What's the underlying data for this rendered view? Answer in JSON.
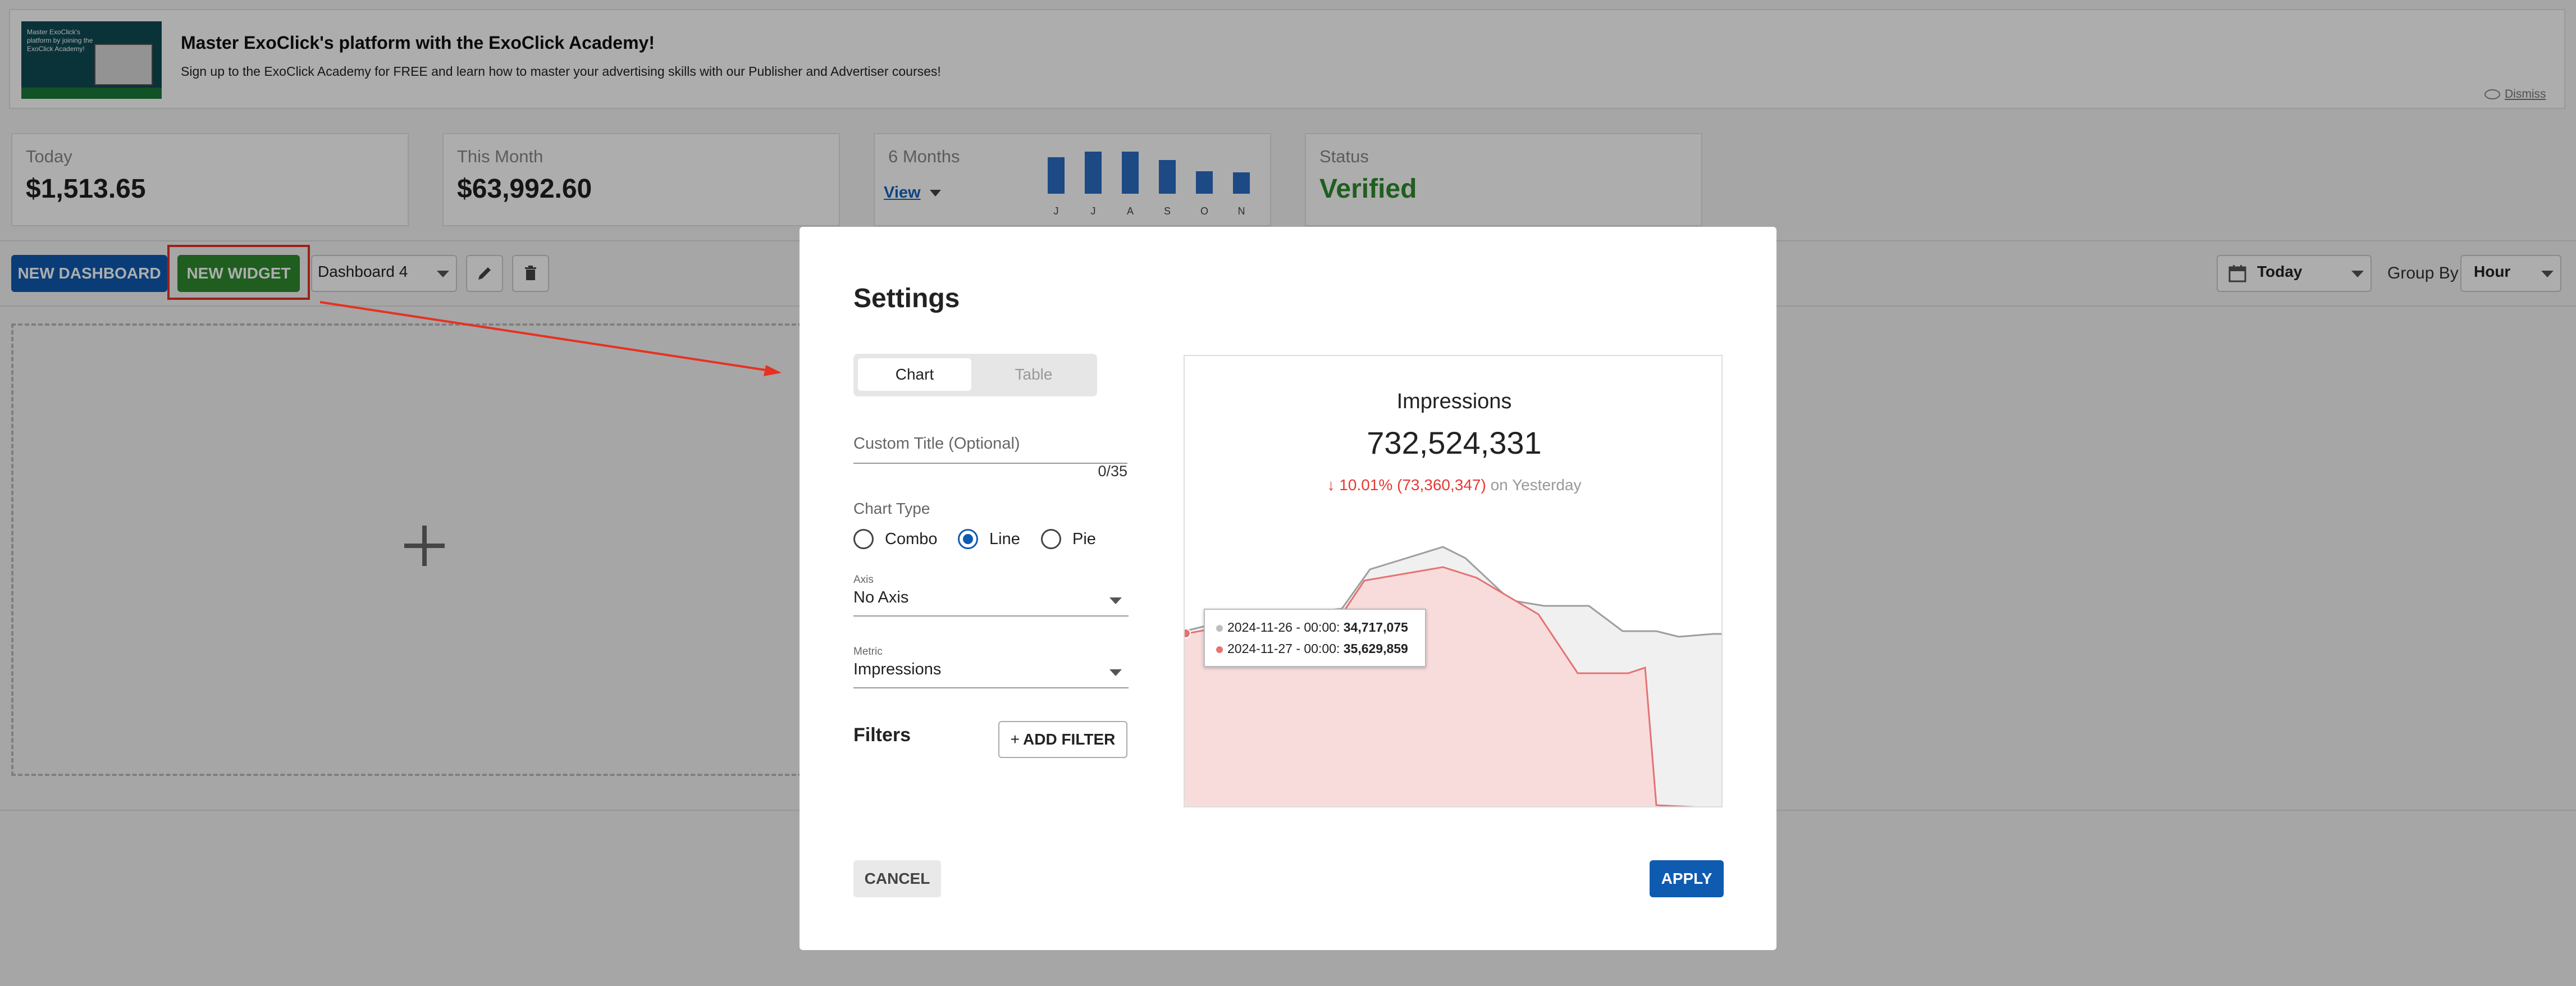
{
  "banner": {
    "image_text": "Master ExoClick's platform by joining the ExoClick Academy!",
    "title": "Master ExoClick's platform with the ExoClick Academy!",
    "subtitle": "Sign up to the ExoClick Academy for FREE and learn how to master your advertising skills with our Publisher and Advertiser courses!",
    "dismiss_label": "Dismiss"
  },
  "stats": {
    "today": {
      "label": "Today",
      "value": "$1,513.65"
    },
    "month": {
      "label": "This Month",
      "value": "$63,992.60"
    },
    "six_months": {
      "label": "6 Months",
      "view_label": "View",
      "bars": [
        {
          "month": "J",
          "level": 0.65
        },
        {
          "month": "J",
          "level": 0.75
        },
        {
          "month": "A",
          "level": 0.75
        },
        {
          "month": "S",
          "level": 0.6
        },
        {
          "month": "O",
          "level": 0.4
        },
        {
          "month": "N",
          "level": 0.38
        }
      ]
    },
    "status": {
      "label": "Status",
      "value": "Verified",
      "color": "#2e8b2e"
    }
  },
  "toolbar": {
    "new_dashboard_label": "NEW DASHBOARD",
    "new_widget_label": "NEW WIDGET",
    "dashboard_select_value": "Dashboard 4",
    "date_range_value": "Today",
    "group_by_label": "Group By",
    "group_by_value": "Hour"
  },
  "modal": {
    "title": "Settings",
    "tabs": {
      "chart": "Chart",
      "table": "Table",
      "selected": "chart"
    },
    "custom_title_placeholder": "Custom Title (Optional)",
    "char_count": "0/35",
    "chart_type_label": "Chart Type",
    "chart_types": {
      "combo": "Combo",
      "line": "Line",
      "pie": "Pie",
      "selected": "line"
    },
    "axis_label": "Axis",
    "axis_value": "No Axis",
    "metric_label": "Metric",
    "metric_value": "Impressions",
    "filters_label": "Filters",
    "add_filter_label": "ADD FILTER",
    "cancel_label": "CANCEL",
    "apply_label": "APPLY",
    "preview": {
      "title": "Impressions",
      "value": "732,524,331",
      "change_value": "10.01% (73,360,347)",
      "change_suffix": "on Yesterday",
      "tooltip": {
        "row1_label": "2024-11-26 - 00:00:",
        "row1_value": "34,717,075",
        "row2_label": "2024-11-27 - 00:00:",
        "row2_value": "35,629,859"
      },
      "colors": {
        "previous": "#9e9e9e",
        "current": "#e57373",
        "negative": "#e53935"
      }
    }
  }
}
